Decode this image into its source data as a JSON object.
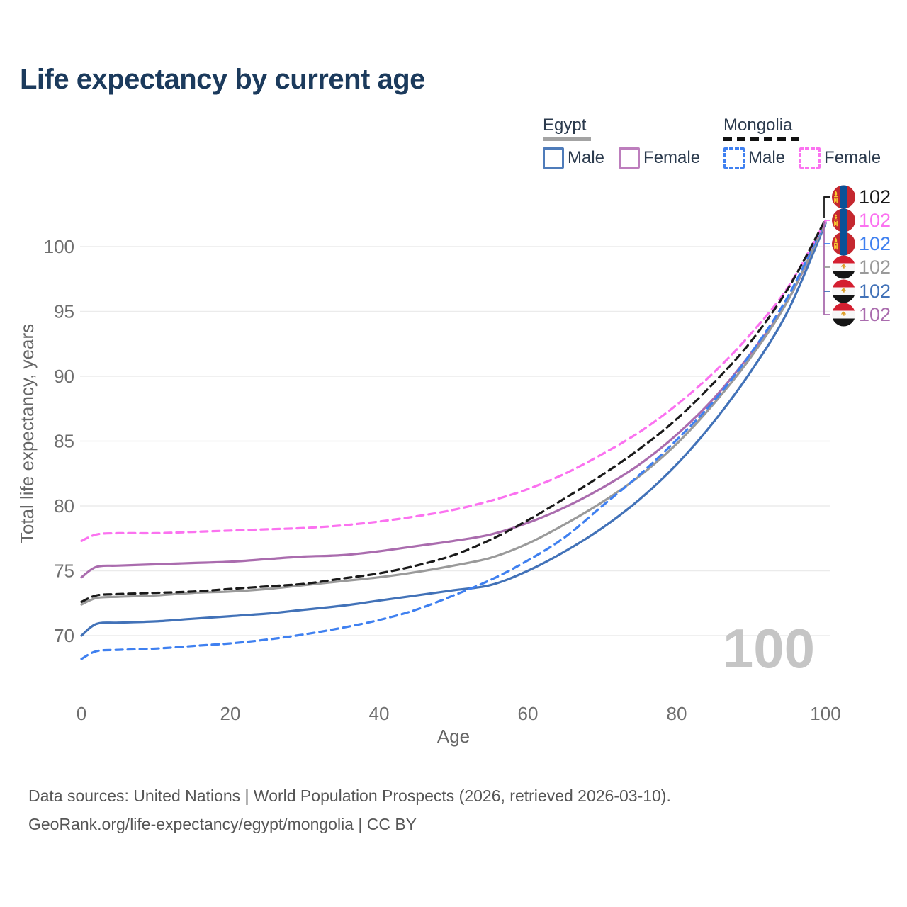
{
  "title": "Life expectancy by current age",
  "legend": {
    "groups": [
      {
        "country": "Egypt",
        "line_style": "solid",
        "underline_color": "#a3a3a3",
        "items": [
          {
            "label": "Male",
            "color": "#4272b8"
          },
          {
            "label": "Female",
            "color": "#aa6cae"
          }
        ]
      },
      {
        "country": "Mongolia",
        "line_style": "dashed",
        "underline_color": "#111111",
        "items": [
          {
            "label": "Male",
            "color": "#3f80f0"
          },
          {
            "label": "Female",
            "color": "#fb72f0"
          }
        ]
      }
    ]
  },
  "chart_data": {
    "type": "line",
    "xlabel": "Age",
    "ylabel": "Total life expectancy, years",
    "watermark": "100",
    "xticks": [
      0,
      20,
      40,
      60,
      80,
      100
    ],
    "yticks": [
      70,
      75,
      80,
      85,
      90,
      95,
      100
    ],
    "xlim": [
      0,
      100
    ],
    "ylim": [
      66.5,
      103.5
    ],
    "grid": "horizontal",
    "legend_position": "top-right",
    "x": [
      0,
      2,
      5,
      10,
      15,
      20,
      25,
      30,
      35,
      40,
      45,
      50,
      55,
      60,
      65,
      70,
      75,
      80,
      85,
      90,
      95,
      100
    ],
    "series": [
      {
        "name": "Mongolia",
        "country": "Mongolia",
        "flag": "mongolia",
        "color": "#1a1a1a",
        "dashed": true,
        "end_label": "102",
        "values": [
          72.6,
          73.1,
          73.2,
          73.3,
          73.4,
          73.6,
          73.8,
          74.0,
          74.4,
          74.8,
          75.4,
          76.2,
          77.4,
          78.9,
          80.6,
          82.4,
          84.4,
          86.7,
          89.5,
          92.7,
          96.8,
          102.1
        ]
      },
      {
        "name": "Mongolia Female",
        "country": "Mongolia",
        "flag": "mongolia",
        "color": "#fb72f0",
        "dashed": true,
        "end_label": "102",
        "values": [
          77.3,
          77.8,
          77.9,
          77.9,
          78.0,
          78.1,
          78.2,
          78.3,
          78.5,
          78.8,
          79.2,
          79.7,
          80.4,
          81.3,
          82.5,
          84.0,
          85.7,
          87.8,
          90.3,
          93.3,
          96.9,
          102.0
        ]
      },
      {
        "name": "Mongolia Male",
        "country": "Mongolia",
        "flag": "mongolia",
        "color": "#3f80f0",
        "dashed": true,
        "end_label": "102",
        "values": [
          68.2,
          68.8,
          68.9,
          69.0,
          69.2,
          69.4,
          69.7,
          70.1,
          70.6,
          71.2,
          72.0,
          73.1,
          74.3,
          75.8,
          77.6,
          80.0,
          82.4,
          85.1,
          88.1,
          91.8,
          96.2,
          102.0
        ]
      },
      {
        "name": "Egypt",
        "country": "Egypt",
        "flag": "egypt",
        "color": "#9a9a9a",
        "dashed": false,
        "end_label": "102",
        "values": [
          72.4,
          72.9,
          73.0,
          73.1,
          73.3,
          73.4,
          73.6,
          73.9,
          74.2,
          74.5,
          74.9,
          75.4,
          76.0,
          77.1,
          78.6,
          80.3,
          82.3,
          84.8,
          87.9,
          91.5,
          95.9,
          101.9
        ]
      },
      {
        "name": "Egypt Male",
        "country": "Egypt",
        "flag": "egypt",
        "color": "#4272b8",
        "dashed": false,
        "end_label": "102",
        "values": [
          70.0,
          70.9,
          71.0,
          71.1,
          71.3,
          71.5,
          71.7,
          72.0,
          72.3,
          72.7,
          73.1,
          73.5,
          73.9,
          75.0,
          76.5,
          78.3,
          80.5,
          83.2,
          86.5,
          90.4,
          95.1,
          101.8
        ]
      },
      {
        "name": "Egypt Female",
        "country": "Egypt",
        "flag": "egypt",
        "color": "#aa6cae",
        "dashed": false,
        "end_label": "102",
        "values": [
          74.5,
          75.3,
          75.4,
          75.5,
          75.6,
          75.7,
          75.9,
          76.1,
          76.2,
          76.5,
          76.9,
          77.3,
          77.8,
          78.7,
          79.9,
          81.4,
          83.2,
          85.5,
          88.3,
          91.8,
          95.9,
          101.8
        ]
      }
    ]
  },
  "footer": {
    "line1": "Data sources: United Nations | World Population Prospects (2026, retrieved 2026-03-10).",
    "line2": "GeoRank.org/life-expectancy/egypt/mongolia | CC BY"
  }
}
